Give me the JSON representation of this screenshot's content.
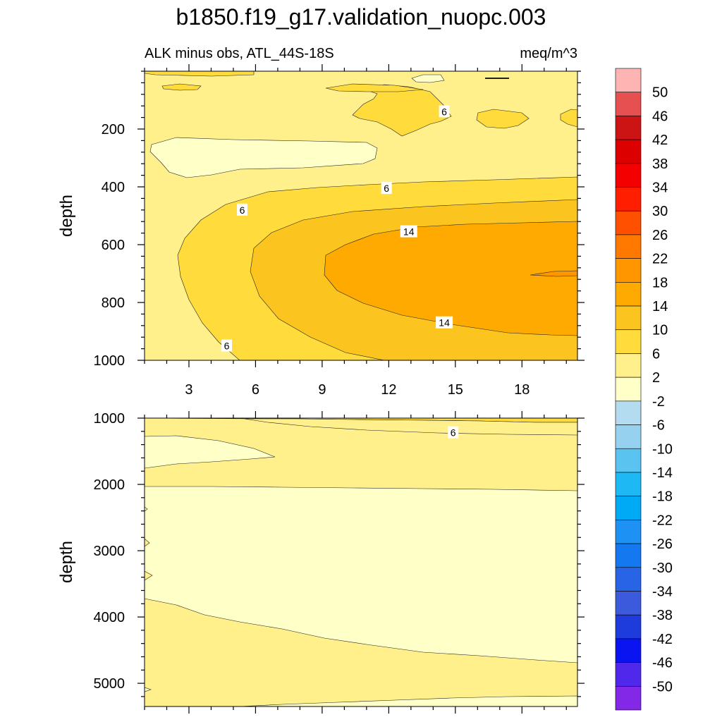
{
  "title": "b1850.f19_g17.validation_nuopc.003",
  "chart_data": [
    {
      "type": "contour",
      "panel": "upper",
      "left_label": "ALK minus obs, ATL_44S-18S",
      "right_label": "meq/m^3",
      "xlabel": "",
      "ylabel": "depth",
      "xlim": [
        1,
        20.5
      ],
      "ylim": [
        0,
        1000
      ],
      "y_inverted": true,
      "x_ticks": [
        "3",
        "6",
        "9",
        "12",
        "15",
        "18"
      ],
      "x_tick_values": [
        3,
        6,
        9,
        12,
        15,
        18
      ],
      "y_ticks": [
        "200",
        "400",
        "600",
        "800",
        "1000"
      ],
      "y_tick_values": [
        200,
        400,
        600,
        800,
        1000
      ],
      "contour_labels": [
        {
          "text": "6",
          "x": 14.5,
          "y": 140
        },
        {
          "text": "6",
          "x": 11.9,
          "y": 405
        },
        {
          "text": "6",
          "x": 5.4,
          "y": 480
        },
        {
          "text": "14",
          "x": 12.9,
          "y": 555
        },
        {
          "text": "14",
          "x": 14.5,
          "y": 870
        },
        {
          "text": "6",
          "x": 4.7,
          "y": 950
        }
      ],
      "regions": [
        {
          "level": "2 to 6",
          "description": "background"
        },
        {
          "level": "-2 to 2",
          "description": "lens near 250-350 m, x 1-11"
        },
        {
          "level": "6 to 10",
          "description": "outer tongue from east, 380-1000 m"
        },
        {
          "level": "10 to 14",
          "description": "middle tongue, 450-1000 m"
        },
        {
          "level": "14 to 18",
          "description": "core 520-920 m, x 9-20.5"
        },
        {
          "level": "18 to 22",
          "description": "small patch near 700 m, x 19-20.5"
        }
      ]
    },
    {
      "type": "contour",
      "panel": "lower",
      "xlabel": "",
      "ylabel": "depth",
      "xlim": [
        1,
        20.5
      ],
      "ylim": [
        1000,
        5350
      ],
      "y_inverted": true,
      "y_ticks": [
        "1000",
        "2000",
        "3000",
        "4000",
        "5000"
      ],
      "y_tick_values": [
        1000,
        2000,
        3000,
        4000,
        5000
      ],
      "contour_labels": [
        {
          "text": "6",
          "x": 14.9,
          "y": 1220
        }
      ],
      "regions": [
        {
          "level": "2 to 6",
          "description": "upper band 1000-2050 m and bottom band below ~3700-4700 m"
        },
        {
          "level": "-2 to 2",
          "description": "mid-depth band 2050-4700 m, small lens 1250-1750 m"
        },
        {
          "level": "6 to 10",
          "description": "thin strip near 1000 m"
        }
      ]
    }
  ],
  "colorbar": {
    "labels": [
      "50",
      "46",
      "42",
      "38",
      "34",
      "30",
      "26",
      "22",
      "18",
      "14",
      "10",
      "6",
      "2",
      "-2",
      "-6",
      "-10",
      "-14",
      "-18",
      "-22",
      "-26",
      "-30",
      "-34",
      "-38",
      "-42",
      "-46",
      "-50"
    ],
    "colors": [
      "#ffb4b4",
      "#e65050",
      "#cd1414",
      "#dc0000",
      "#f50000",
      "#ff1e00",
      "#ff5000",
      "#ff7800",
      "#ff9600",
      "#ffaa00",
      "#fcc41e",
      "#ffdc3c",
      "#fff08c",
      "#ffffc8",
      "#b4dcf0",
      "#96d2f0",
      "#5ac3f0",
      "#1eb9f5",
      "#00aaf5",
      "#1e91f5",
      "#1478f0",
      "#2864e6",
      "#3c5adc",
      "#1e3cdc",
      "#0a14f0",
      "#5028eb",
      "#8228e6"
    ]
  },
  "colors": {
    "c_neg": "#ffffc8",
    "c_2": "#fff08c",
    "c_6": "#ffdc3c",
    "c_10": "#fcc41e",
    "c_14": "#ffaa00",
    "c_18": "#ff9600"
  }
}
